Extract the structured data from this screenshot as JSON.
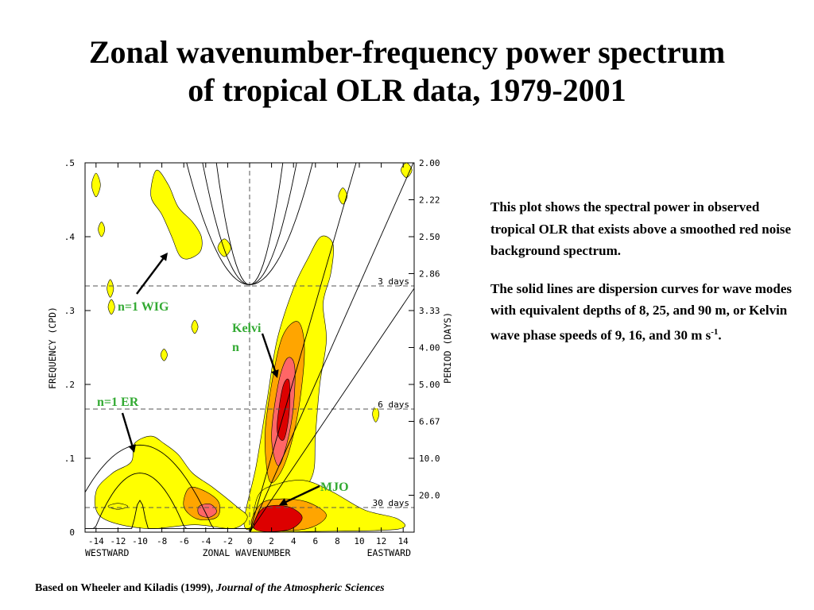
{
  "title": {
    "line1": "Zonal wavenumber-frequency power spectrum",
    "line2": "of tropical OLR data, 1979-2001"
  },
  "description": {
    "para1": "This plot shows the spectral power in observed tropical OLR that exists above a smoothed red noise background spectrum.",
    "para2_prefix": "The solid lines are dispersion curves for wave modes with equivalent depths of 8, 25, and 90 m, or Kelvin wave phase speeds of 9, 16, and 30 m s",
    "para2_sup": "-1",
    "para2_suffix": "."
  },
  "citation": {
    "prefix": "Based on Wheeler and Kiladis (1999), ",
    "journal": "Journal of the Atmospheric Sciences"
  },
  "colors": {
    "yellow": "#ffff00",
    "orange": "#ffa500",
    "salmon": "#ff6666",
    "red": "#dd0000",
    "label_green": "#33aa33"
  },
  "chart_data": {
    "type": "heatmap",
    "xlabel": "ZONAL WAVENUMBER",
    "x_left_label": "WESTWARD",
    "x_right_label": "EASTWARD",
    "ylabel": "FREQUENCY (CPD)",
    "y2label": "PERIOD (DAYS)",
    "xlim": [
      -15,
      15
    ],
    "ylim": [
      0,
      0.5
    ],
    "x_ticks": [
      "-14",
      "-12",
      "-10",
      "-8",
      "-6",
      "-4",
      "-2",
      "0",
      "2",
      "4",
      "6",
      "8",
      "10",
      "12",
      "14"
    ],
    "y_ticks": [
      {
        "value": 0,
        "label": "0"
      },
      {
        "value": 0.1,
        "label": ".1"
      },
      {
        "value": 0.2,
        "label": ".2"
      },
      {
        "value": 0.3,
        "label": ".3"
      },
      {
        "value": 0.4,
        "label": ".4"
      },
      {
        "value": 0.5,
        "label": ".5"
      }
    ],
    "period_ticks": [
      {
        "value": 0.5,
        "label": "2.00"
      },
      {
        "value": 0.45,
        "label": "2.22"
      },
      {
        "value": 0.4,
        "label": "2.50"
      },
      {
        "value": 0.35,
        "label": "2.86"
      },
      {
        "value": 0.3,
        "label": "3.33"
      },
      {
        "value": 0.25,
        "label": "4.00"
      },
      {
        "value": 0.2,
        "label": "5.00"
      },
      {
        "value": 0.15,
        "label": "6.67"
      },
      {
        "value": 0.1,
        "label": "10.0"
      },
      {
        "value": 0.05,
        "label": "20.0"
      }
    ],
    "reference_lines": [
      {
        "frequency": 0.3333,
        "label": "3 days"
      },
      {
        "frequency": 0.1667,
        "label": "6 days"
      },
      {
        "frequency": 0.0333,
        "label": "30 days"
      }
    ],
    "annotations": [
      {
        "label": "n=1 WIG",
        "x": -12.5,
        "y": 0.305,
        "arrow_to": [
          -7.3,
          0.38
        ]
      },
      {
        "label": "Kelvi",
        "label2": "n",
        "x": 1.5,
        "y": 0.275,
        "arrow_to": [
          2.9,
          0.205
        ]
      },
      {
        "label": "n=1 ER",
        "x": -14,
        "y": 0.175,
        "arrow_to": [
          -10.7,
          0.105
        ]
      },
      {
        "label": "MJO",
        "x": 6.5,
        "y": 0.058,
        "arrow_to": [
          2.9,
          0.032
        ]
      }
    ]
  }
}
